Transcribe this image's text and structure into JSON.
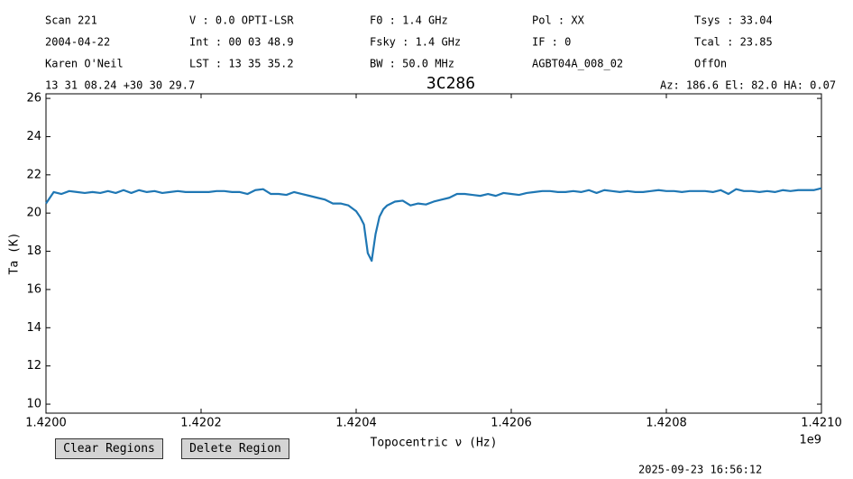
{
  "header": {
    "rows": [
      [
        "Scan     221",
        "V   : 0.0 OPTI-LSR",
        "F0   :  1.4 GHz",
        "Pol :   XX",
        "Tsys  :  33.04"
      ],
      [
        "2004-04-22",
        "Int : 00 03 48.9",
        "Fsky :  1.4 GHz",
        "IF  :    0",
        "Tcal  :  23.85"
      ],
      [
        "Karen O'Neil",
        "LST : 13 35 35.2",
        "BW   :  50.0 MHz",
        "AGBT04A_008_02",
        "OffOn"
      ]
    ],
    "source_position": "13 31 08.24  +30 30 29.7",
    "pointing": "Az: 186.6  El: 82.0  HA: 0.07"
  },
  "chart_data": {
    "type": "line",
    "title": "3C286",
    "x_label": "Topocentric ν (Hz)",
    "y_label": "Ta (K)",
    "x_offset_label": "1e9",
    "color": "#1f77b4",
    "x": [
      1.42,
      1.42001,
      1.42002,
      1.42003,
      1.42004,
      1.42005,
      1.42006,
      1.42007,
      1.42008,
      1.42009,
      1.4201,
      1.42011,
      1.42012,
      1.42013,
      1.42014,
      1.42015,
      1.42016,
      1.42017,
      1.42018,
      1.42019,
      1.4202,
      1.42021,
      1.42022,
      1.42023,
      1.42024,
      1.42025,
      1.42026,
      1.42027,
      1.42028,
      1.42029,
      1.4203,
      1.42031,
      1.42032,
      1.42033,
      1.42034,
      1.42035,
      1.42036,
      1.42037,
      1.42038,
      1.42039,
      1.4204,
      1.420405,
      1.42041,
      1.420415,
      1.42042,
      1.420425,
      1.42043,
      1.420435,
      1.42044,
      1.42045,
      1.42046,
      1.42047,
      1.42048,
      1.42049,
      1.4205,
      1.42051,
      1.42052,
      1.42053,
      1.42054,
      1.42055,
      1.42056,
      1.42057,
      1.42058,
      1.42059,
      1.4206,
      1.42061,
      1.42062,
      1.42063,
      1.42064,
      1.42065,
      1.42066,
      1.42067,
      1.42068,
      1.42069,
      1.4207,
      1.42071,
      1.42072,
      1.42073,
      1.42074,
      1.42075,
      1.42076,
      1.42077,
      1.42078,
      1.42079,
      1.4208,
      1.42081,
      1.42082,
      1.42083,
      1.42084,
      1.42085,
      1.42086,
      1.42087,
      1.42088,
      1.42089,
      1.4209,
      1.42091,
      1.42092,
      1.42093,
      1.42094,
      1.42095,
      1.42096,
      1.42097,
      1.42098,
      1.42099,
      1.421
    ],
    "values": [
      20.5,
      21.1,
      21.0,
      21.15,
      21.1,
      21.05,
      21.1,
      21.05,
      21.15,
      21.05,
      21.2,
      21.05,
      21.2,
      21.1,
      21.15,
      21.05,
      21.1,
      21.15,
      21.1,
      21.1,
      21.1,
      21.1,
      21.15,
      21.15,
      21.1,
      21.1,
      21.0,
      21.2,
      21.25,
      21.0,
      21.0,
      20.95,
      21.1,
      21.0,
      20.9,
      20.8,
      20.7,
      20.5,
      20.5,
      20.4,
      20.1,
      19.8,
      19.4,
      17.9,
      17.5,
      18.9,
      19.8,
      20.2,
      20.4,
      20.6,
      20.65,
      20.4,
      20.5,
      20.45,
      20.6,
      20.7,
      20.8,
      21.0,
      21.0,
      20.95,
      20.9,
      21.0,
      20.9,
      21.05,
      21.0,
      20.95,
      21.05,
      21.1,
      21.15,
      21.15,
      21.1,
      21.1,
      21.15,
      21.1,
      21.2,
      21.05,
      21.2,
      21.15,
      21.1,
      21.15,
      21.1,
      21.1,
      21.15,
      21.2,
      21.15,
      21.15,
      21.1,
      21.15,
      21.15,
      21.15,
      21.1,
      21.2,
      21.0,
      21.25,
      21.15,
      21.15,
      21.1,
      21.15,
      21.1,
      21.2,
      21.15,
      21.2,
      21.2,
      21.2,
      21.3
    ],
    "xlim": [
      1.42,
      1.421
    ],
    "xticks": [
      {
        "value": 1.42,
        "label": "1.4200"
      },
      {
        "value": 1.4202,
        "label": "1.4202"
      },
      {
        "value": 1.4204,
        "label": "1.4204"
      },
      {
        "value": 1.4206,
        "label": "1.4206"
      },
      {
        "value": 1.4208,
        "label": "1.4208"
      },
      {
        "value": 1.421,
        "label": "1.4210"
      }
    ],
    "ylim": [
      9.53,
      26.24
    ],
    "yticks": [
      10,
      12,
      14,
      16,
      18,
      20,
      22,
      24,
      26
    ]
  },
  "buttons": [
    "Clear Regions",
    "Delete Region"
  ],
  "timestamp": "2025-09-23 16:56:12"
}
